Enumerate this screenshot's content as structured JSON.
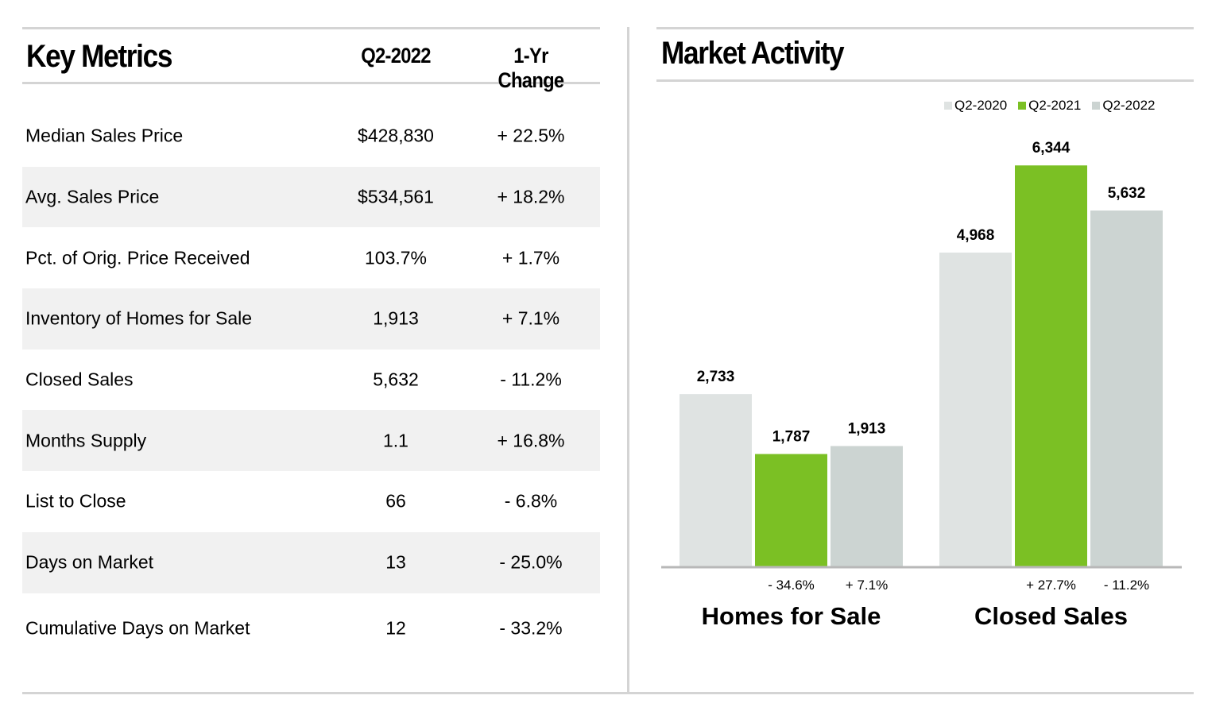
{
  "key_metrics": {
    "title": "Key Metrics",
    "col_period": "Q2-2022",
    "col_change": "1-Yr Change",
    "rows": [
      {
        "label": "Median Sales Price",
        "value": "$428,830",
        "change": "+ 22.5%"
      },
      {
        "label": "Avg. Sales Price",
        "value": "$534,561",
        "change": "+ 18.2%"
      },
      {
        "label": "Pct. of Orig. Price Received",
        "value": "103.7%",
        "change": "+ 1.7%"
      },
      {
        "label": "Inventory of Homes for Sale",
        "value": "1,913",
        "change": "+ 7.1%"
      },
      {
        "label": "Closed Sales",
        "value": "5,632",
        "change": "- 11.2%"
      },
      {
        "label": "Months Supply",
        "value": "1.1",
        "change": "+ 16.8%"
      },
      {
        "label": "List to Close",
        "value": "66",
        "change": "- 6.8%"
      },
      {
        "label": "Days on Market",
        "value": "13",
        "change": "- 25.0%"
      },
      {
        "label": "Cumulative Days on Market",
        "value": "12",
        "change": "- 33.2%"
      }
    ]
  },
  "market_activity": {
    "title": "Market Activity"
  },
  "chart_data": {
    "type": "bar",
    "title": "Market Activity",
    "legend_position": "top-right",
    "grid": false,
    "categories": [
      "Homes for Sale",
      "Closed Sales"
    ],
    "series": [
      {
        "name": "Q2-2020",
        "color": "#dfe3e2",
        "values": [
          2733,
          4968
        ],
        "labels": [
          "2,733",
          "4,968"
        ]
      },
      {
        "name": "Q2-2021",
        "color": "#7bc024",
        "values": [
          1787,
          6344
        ],
        "labels": [
          "1,787",
          "6,344"
        ]
      },
      {
        "name": "Q2-2022",
        "color": "#ccd4d2",
        "values": [
          1913,
          5632
        ],
        "labels": [
          "1,913",
          "5,632"
        ]
      }
    ],
    "changes": [
      [
        "- 34.6%",
        "+ 7.1%"
      ],
      [
        "+ 27.7%",
        "- 11.2%"
      ]
    ],
    "ylim": [
      0,
      7200
    ]
  }
}
